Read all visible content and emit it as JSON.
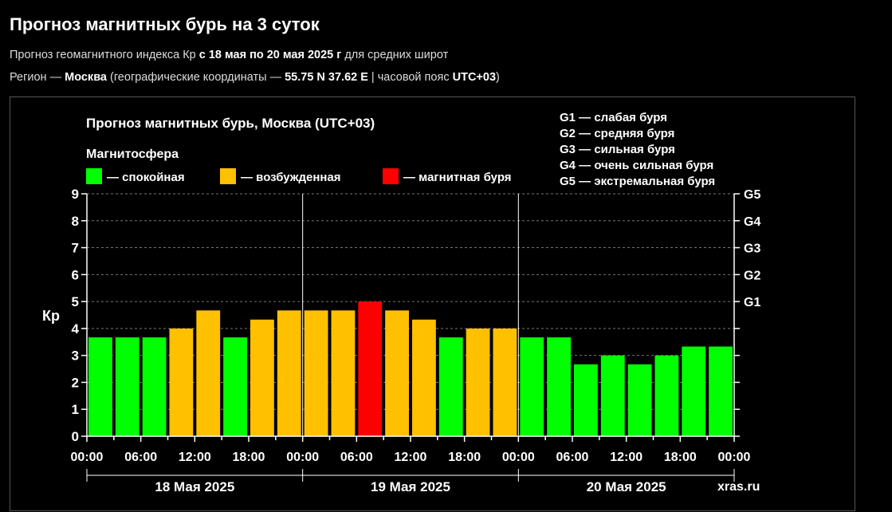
{
  "header": {
    "title": "Прогноз магнитных бурь на 3 суток",
    "line1_a": "Прогноз геомагнитного индекса Кр ",
    "line1_b": "с 18 мая по 20 мая 2025 г",
    "line1_c": " для средних широт",
    "line2_a": "Регион — ",
    "line2_b": "Москва",
    "line2_c": " (географические координаты — ",
    "line2_d": "55.75 N 37.62 E",
    "line2_e": " | часовой пояс ",
    "line2_f": "UTC+03",
    "line2_g": ")"
  },
  "colors": {
    "calm": "#00ff00",
    "excited": "#ffc000",
    "storm": "#ff0000",
    "background": "#000000"
  },
  "chart_data": {
    "type": "bar",
    "title": "Прогноз магнитных бурь, Москва (UTC+03)",
    "legend_title": "Магнитосфера",
    "legend": [
      {
        "label": "— спокойная",
        "color": "#00ff00"
      },
      {
        "label": "— возбужденная",
        "color": "#ffc000"
      },
      {
        "label": "— магнитная буря",
        "color": "#ff0000"
      }
    ],
    "storm_legend": [
      "G1 — слабая буря",
      "G2 — средняя буря",
      "G3 — сильная буря",
      "G4 — очень сильная буря",
      "G5 — экстремальная буря"
    ],
    "ylabel": "Кр",
    "ylim": [
      0,
      9
    ],
    "yticks": [
      "0",
      "1",
      "2",
      "3",
      "4",
      "5",
      "6",
      "7",
      "8",
      "9"
    ],
    "right_axis": [
      {
        "label": "G1",
        "value": 5
      },
      {
        "label": "G2",
        "value": 6
      },
      {
        "label": "G3",
        "value": 7
      },
      {
        "label": "G4",
        "value": 8
      },
      {
        "label": "G5",
        "value": 9
      }
    ],
    "xticks": [
      "00:00",
      "06:00",
      "12:00",
      "18:00",
      "00:00",
      "06:00",
      "12:00",
      "18:00",
      "00:00",
      "06:00",
      "12:00",
      "18:00",
      "00:00"
    ],
    "days": [
      "18 Мая 2025",
      "19 Мая 2025",
      "20 Мая 2025"
    ],
    "values": [
      3.67,
      3.67,
      3.67,
      4.0,
      4.67,
      3.67,
      4.33,
      4.67,
      4.67,
      4.67,
      5.0,
      4.67,
      4.33,
      3.67,
      4.0,
      4.0,
      3.67,
      3.67,
      2.67,
      3.0,
      2.67,
      3.0,
      3.33,
      3.33
    ],
    "levels": [
      "calm",
      "calm",
      "calm",
      "excited",
      "excited",
      "calm",
      "excited",
      "excited",
      "excited",
      "excited",
      "storm",
      "excited",
      "excited",
      "calm",
      "excited",
      "excited",
      "calm",
      "calm",
      "calm",
      "calm",
      "calm",
      "calm",
      "calm",
      "calm"
    ],
    "grid": true,
    "watermark": "xras.ru"
  }
}
